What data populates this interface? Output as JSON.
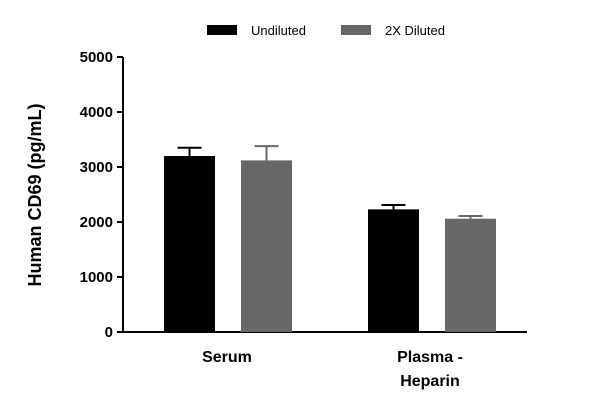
{
  "chart_data": {
    "type": "bar",
    "title": "",
    "xlabel": "",
    "ylabel": "Human CD69 (pg/mL)",
    "ylim": [
      0,
      5000
    ],
    "yticks": [
      "0",
      "1000",
      "2000",
      "3000",
      "4000",
      "5000"
    ],
    "categories": [
      {
        "lines": [
          "Serum"
        ]
      },
      {
        "lines": [
          "Plasma -",
          "Heparin"
        ]
      }
    ],
    "series": [
      {
        "name": "Undiluted",
        "color": "#000000",
        "values": [
          3200,
          2230
        ],
        "errors": [
          150,
          80
        ]
      },
      {
        "name": "2X Diluted",
        "color": "#676767",
        "values": [
          3120,
          2060
        ],
        "errors": [
          260,
          50
        ]
      }
    ],
    "legend_position": "top",
    "grid": false
  }
}
